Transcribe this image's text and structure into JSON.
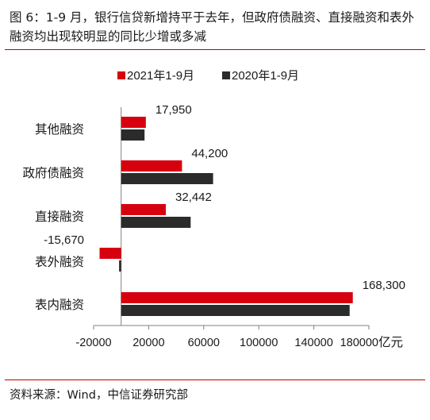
{
  "title": "图 6：1-9 月，银行信贷新增持平于去年，但政府债融资、直接融资和表外融资均出现较明显的同比少增或多减",
  "source": "资料来源：Wind，中信证券研究部",
  "chart_data": {
    "type": "bar",
    "orientation": "horizontal",
    "categories": [
      "其他融资",
      "政府债融资",
      "直接融资",
      "表外融资",
      "表内融资"
    ],
    "series": [
      {
        "name": "2021年1-9月",
        "color": "#d7000f",
        "values": [
          17950,
          44200,
          32442,
          -15670,
          168300
        ],
        "labels": [
          "17,950",
          "44,200",
          "32,442",
          "-15,670",
          "168,300"
        ]
      },
      {
        "name": "2020年1-9月",
        "color": "#2b2b2b",
        "values": [
          17000,
          66800,
          50500,
          -1500,
          166000
        ]
      }
    ],
    "x_ticks": [
      -20000,
      20000,
      60000,
      100000,
      140000,
      180000
    ],
    "x_tick_labels": [
      "-20000",
      "20000",
      "60000",
      "100000",
      "140000",
      "180000"
    ],
    "xlim": [
      -20000,
      180000
    ],
    "x_unit": "亿元",
    "legend_position": "top",
    "grid": false
  }
}
